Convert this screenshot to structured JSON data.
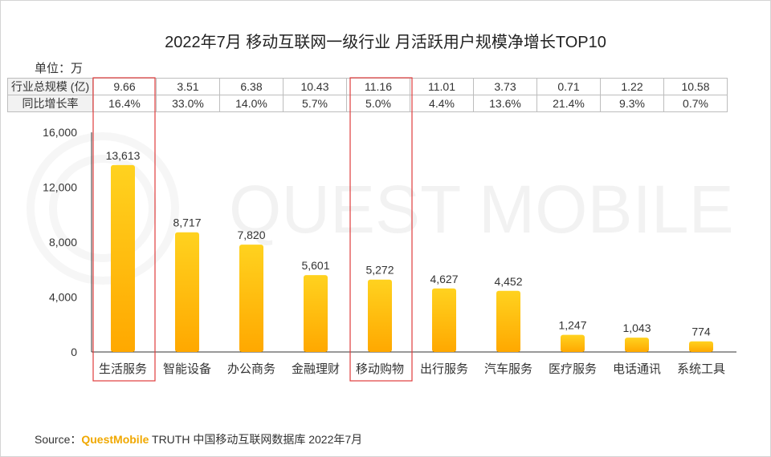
{
  "title": "2022年7月 移动互联网一级行业 月活跃用户规模净增长TOP10",
  "unit": "单位：万",
  "table": {
    "row1_label": "行业总规模 (亿)",
    "row2_label": "同比增长率",
    "total_scale": [
      "9.66",
      "3.51",
      "6.38",
      "10.43",
      "11.16",
      "11.01",
      "3.73",
      "0.71",
      "1.22",
      "10.58"
    ],
    "yoy_growth": [
      "16.4%",
      "33.0%",
      "14.0%",
      "5.7%",
      "5.0%",
      "4.4%",
      "13.6%",
      "21.4%",
      "9.3%",
      "0.7%"
    ]
  },
  "chart_data": {
    "type": "bar",
    "categories": [
      "生活服务",
      "智能设备",
      "办公商务",
      "金融理财",
      "移动购物",
      "出行服务",
      "汽车服务",
      "医疗服务",
      "电话通讯",
      "系统工具"
    ],
    "values": [
      13613,
      8717,
      7820,
      5601,
      5272,
      4627,
      4452,
      1247,
      1043,
      774
    ],
    "value_labels": [
      "13,613",
      "8,717",
      "7,820",
      "5,601",
      "5,272",
      "4,627",
      "4,452",
      "1,247",
      "1,043",
      "774"
    ],
    "yticks": [
      "0",
      "4,000",
      "8,000",
      "12,000",
      "16,000"
    ],
    "ytick_values": [
      0,
      4000,
      8000,
      12000,
      16000
    ],
    "ylim": [
      0,
      16000
    ],
    "highlighted_indices": [
      0,
      4
    ],
    "bar_color_top": "#ffd21f",
    "bar_color_bottom": "#ffa800",
    "highlight_color": "#e03c3c"
  },
  "watermark": "QUEST MOBILE",
  "source": {
    "prefix": "Source：",
    "brand": "QuestMobile",
    "text": "TRUTH 中国移动互联网数据库 2022年7月"
  }
}
